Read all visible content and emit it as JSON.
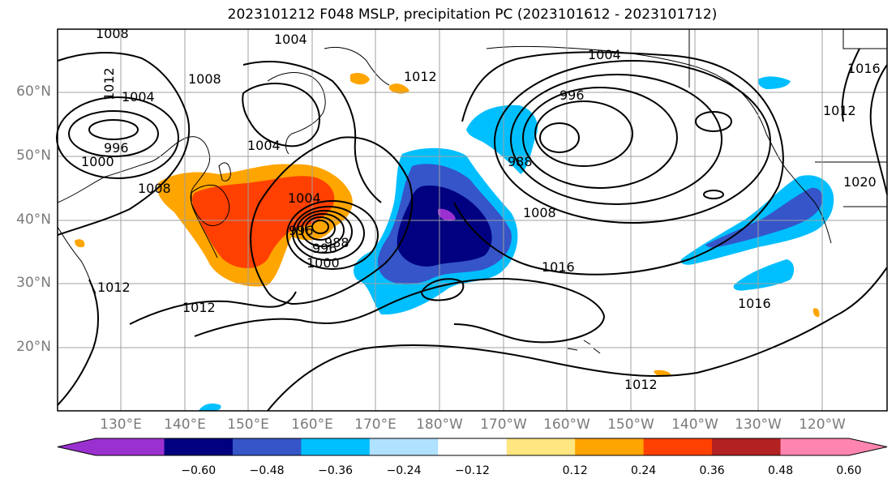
{
  "title": "2023101212 F048 MSLP, precipitation PC (2023101612 - 2023101712)",
  "lat_labels": [
    {
      "text": "60°N",
      "lat": 60
    },
    {
      "text": "50°N",
      "lat": 50
    },
    {
      "text": "40°N",
      "lat": 40
    },
    {
      "text": "30°N",
      "lat": 30
    },
    {
      "text": "20°N",
      "lat": 20
    }
  ],
  "lon_labels": [
    "130°E",
    "140°E",
    "150°E",
    "160°E",
    "170°E",
    "180°W",
    "170°W",
    "160°W",
    "150°W",
    "140°W",
    "130°W",
    "120°W"
  ],
  "colorbar": {
    "colors": [
      "#9b30d0",
      "#000080",
      "#3555c8",
      "#00bfff",
      "#b0e2ff",
      "#ffffff",
      "#ffe680",
      "#ffa500",
      "#ff4000",
      "#b22222",
      "#ff85b0"
    ],
    "ticks": [
      "−0.60",
      "−0.48",
      "−0.36",
      "−0.24",
      "−0.12",
      "0.12",
      "0.24",
      "0.36",
      "0.48",
      "0.60"
    ]
  },
  "contour_labels": [
    "1008",
    "1004",
    "1012",
    "1004",
    "1008",
    "996",
    "1000",
    "1008",
    "1004",
    "1004",
    "996",
    "1000",
    "996",
    "988",
    "992",
    "1012",
    "1004",
    "996",
    "988",
    "1016",
    "1012",
    "1016",
    "1008",
    "1016",
    "1012",
    "1012",
    "1020",
    "1016",
    "1012"
  ],
  "legend": {
    "palette_name": "precipitation-pc",
    "negative_colors_meaning": "blue shades",
    "positive_colors_meaning": "orange/red shades"
  }
}
